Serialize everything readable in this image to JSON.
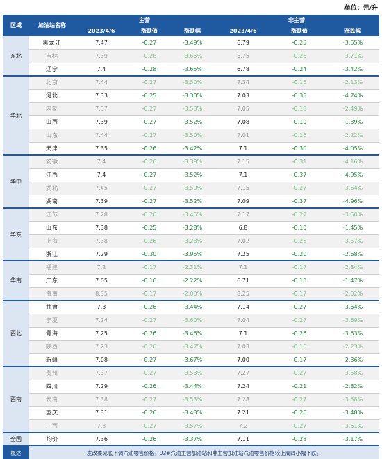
{
  "unit": "单位：元/升",
  "headers": {
    "region": "区域",
    "station": "加油站名称",
    "main": "主营",
    "nonmain": "非主营",
    "date": "2023/4/6",
    "change_value": "涨跌值",
    "change_pct": "涨跌幅"
  },
  "regions": [
    {
      "name": "东北",
      "rows": [
        {
          "station": "黑龙江",
          "m_price": "7.47",
          "m_change": "-0.27",
          "m_pct": "-3.49%",
          "n_price": "6.79",
          "n_change": "-0.25",
          "n_pct": "-3.55%",
          "faded": false
        },
        {
          "station": "吉林",
          "m_price": "7.39",
          "m_change": "-0.28",
          "m_pct": "-3.65%",
          "n_price": "6.75",
          "n_change": "-0.26",
          "n_pct": "-3.71%",
          "faded": true
        },
        {
          "station": "辽宁",
          "m_price": "7.4",
          "m_change": "-0.28",
          "m_pct": "-3.65%",
          "n_price": "6.78",
          "n_change": "-0.24",
          "n_pct": "-3.42%",
          "faded": false
        }
      ]
    },
    {
      "name": "华北",
      "rows": [
        {
          "station": "北京",
          "m_price": "7.44",
          "m_change": "-0.27",
          "m_pct": "-3.50%",
          "n_price": "7.34",
          "n_change": "-0.16",
          "n_pct": "-2.13%",
          "faded": true
        },
        {
          "station": "河北",
          "m_price": "7.33",
          "m_change": "-0.25",
          "m_pct": "-3.30%",
          "n_price": "7.03",
          "n_change": "-0.35",
          "n_pct": "-4.74%",
          "faded": false
        },
        {
          "station": "内蒙",
          "m_price": "7.37",
          "m_change": "-0.27",
          "m_pct": "-3.53%",
          "n_price": "7.05",
          "n_change": "-0.18",
          "n_pct": "-2.49%",
          "faded": true
        },
        {
          "station": "山西",
          "m_price": "7.39",
          "m_change": "-0.27",
          "m_pct": "-3.52%",
          "n_price": "7.08",
          "n_change": "-0.10",
          "n_pct": "-1.39%",
          "faded": false
        },
        {
          "station": "山东",
          "m_price": "7.44",
          "m_change": "-0.27",
          "m_pct": "-3.50%",
          "n_price": "7.01",
          "n_change": "-0.16",
          "n_pct": "-2.22%",
          "faded": true
        },
        {
          "station": "天津",
          "m_price": "7.35",
          "m_change": "-0.26",
          "m_pct": "-3.42%",
          "n_price": "7.1",
          "n_change": "-0.30",
          "n_pct": "-4.05%",
          "faded": false
        }
      ]
    },
    {
      "name": "华中",
      "rows": [
        {
          "station": "安徽",
          "m_price": "7.4",
          "m_change": "-0.26",
          "m_pct": "-3.39%",
          "n_price": "7.15",
          "n_change": "-0.31",
          "n_pct": "-4.16%",
          "faded": true
        },
        {
          "station": "江西",
          "m_price": "7.4",
          "m_change": "-0.27",
          "m_pct": "-3.52%",
          "n_price": "7.1",
          "n_change": "-0.37",
          "n_pct": "-4.95%",
          "faded": false
        },
        {
          "station": "湖北",
          "m_price": "7.45",
          "m_change": "-0.27",
          "m_pct": "-3.50%",
          "n_price": "7.15",
          "n_change": "-0.27",
          "n_pct": "-3.64%",
          "faded": true
        },
        {
          "station": "湖南",
          "m_price": "7.39",
          "m_change": "-0.27",
          "m_pct": "-3.52%",
          "n_price": "7.09",
          "n_change": "-0.37",
          "n_pct": "-4.96%",
          "faded": false
        }
      ]
    },
    {
      "name": "华东",
      "rows": [
        {
          "station": "江苏",
          "m_price": "7.28",
          "m_change": "-0.26",
          "m_pct": "-3.45%",
          "n_price": "7.17",
          "n_change": "-0.27",
          "n_pct": "-3.50%",
          "faded": true
        },
        {
          "station": "山东",
          "m_price": "7.38",
          "m_change": "-0.25",
          "m_pct": "-3.28%",
          "n_price": "6.8",
          "n_change": "-0.10",
          "n_pct": "-1.45%",
          "faded": false
        },
        {
          "station": "上海",
          "m_price": "7.38",
          "m_change": "-0.26",
          "m_pct": "-3.28%",
          "n_price": "7.02",
          "n_change": "-0.26",
          "n_pct": "-3.57%",
          "faded": true
        },
        {
          "station": "浙江",
          "m_price": "7.29",
          "m_change": "-0.30",
          "m_pct": "-3.95%",
          "n_price": "7.25",
          "n_change": "-0.20",
          "n_pct": "-2.68%",
          "faded": false
        }
      ]
    },
    {
      "name": "华南",
      "rows": [
        {
          "station": "福建",
          "m_price": "7.2",
          "m_change": "-0.17",
          "m_pct": "-2.31%",
          "n_price": "7.1",
          "n_change": "-0.17",
          "n_pct": "-2.34%",
          "faded": true
        },
        {
          "station": "广东",
          "m_price": "7.05",
          "m_change": "-0.16",
          "m_pct": "-2.22%",
          "n_price": "6.71",
          "n_change": "-0.10",
          "n_pct": "-1.47%",
          "faded": false
        },
        {
          "station": "海南",
          "m_price": "8.35",
          "m_change": "-0.17",
          "m_pct": "-2.00%",
          "n_price": "8.25",
          "n_change": "-0.17",
          "n_pct": "-2.02%",
          "faded": true
        }
      ]
    },
    {
      "name": "西北",
      "rows": [
        {
          "station": "甘肃",
          "m_price": "7.3",
          "m_change": "-0.26",
          "m_pct": "-3.44%",
          "n_price": "7.14",
          "n_change": "-0.27",
          "n_pct": "-3.64%",
          "faded": false
        },
        {
          "station": "宁夏",
          "m_price": "7.24",
          "m_change": "-0.27",
          "m_pct": "-3.60%",
          "n_price": "7.04",
          "n_change": "-0.27",
          "n_pct": "-3.69%",
          "faded": true
        },
        {
          "station": "青海",
          "m_price": "7.25",
          "m_change": "-0.26",
          "m_pct": "-3.46%",
          "n_price": "7.1",
          "n_change": "-0.26",
          "n_pct": "-3.53%",
          "faded": false
        },
        {
          "station": "陕西",
          "m_price": "7.23",
          "m_change": "-0.26",
          "m_pct": "-3.47%",
          "n_price": "7.03",
          "n_change": "-0.16",
          "n_pct": "-2.23%",
          "faded": true
        },
        {
          "station": "新疆",
          "m_price": "7.08",
          "m_change": "-0.27",
          "m_pct": "-3.67%",
          "n_price": "7.00",
          "n_change": "-0.17",
          "n_pct": "-2.36%",
          "faded": false
        }
      ]
    },
    {
      "name": "西南",
      "rows": [
        {
          "station": "贵州",
          "m_price": "7.37",
          "m_change": "-0.27",
          "m_pct": "-3.53%",
          "n_price": "7.27",
          "n_change": "-0.27",
          "n_pct": "-3.58%",
          "faded": true
        },
        {
          "station": "四川",
          "m_price": "7.29",
          "m_change": "-0.26",
          "m_pct": "-3.44%",
          "n_price": "7.24",
          "n_change": "-0.21",
          "n_pct": "-2.82%",
          "faded": false
        },
        {
          "station": "云南",
          "m_price": "7.38",
          "m_change": "-0.27",
          "m_pct": "-3.53%",
          "n_price": "7.28",
          "n_change": "-0.27",
          "n_pct": "-3.58%",
          "faded": true
        },
        {
          "station": "重庆",
          "m_price": "7.31",
          "m_change": "-0.26",
          "m_pct": "-3.43%",
          "n_price": "7.21",
          "n_change": "-0.26",
          "n_pct": "-3.48%",
          "faded": false
        },
        {
          "station": "广西",
          "m_price": "7.3",
          "m_change": "-0.27",
          "m_pct": "-3.57%",
          "n_price": "7.2",
          "n_change": "-0.27",
          "n_pct": "-3.61%",
          "faded": true
        }
      ]
    }
  ],
  "total": {
    "region": "全国",
    "station": "均价",
    "m_price": "7.36",
    "m_change": "-0.26",
    "m_pct": "-3.37%",
    "n_price": "7.11",
    "n_change": "-0.23",
    "n_pct": "-3.17%"
  },
  "note": {
    "label": "概述",
    "text": "发改委见底下调汽油零售价格，92#汽油主营加油站和非主营加油站汽油零售价格较上周四小幅下跌。"
  }
}
